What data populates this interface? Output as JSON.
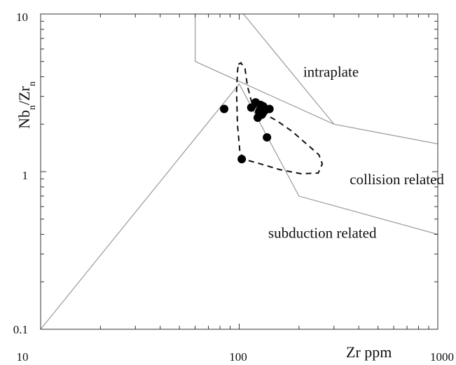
{
  "chart_data": {
    "type": "scatter",
    "xscale": "log",
    "yscale": "log",
    "xlim": [
      10,
      1000
    ],
    "ylim": [
      0.1,
      10
    ],
    "xlabel": "Zr ppm",
    "ylabel": {
      "base1": "Nb",
      "sub1": "n",
      "slash": "/",
      "base2": "Zr",
      "sub2": "n"
    },
    "xticks": [
      {
        "value": 10,
        "label": "10"
      },
      {
        "value": 100,
        "label": "100"
      },
      {
        "value": 1000,
        "label": "1000"
      }
    ],
    "yticks": [
      {
        "value": 0.1,
        "label": "0.1"
      },
      {
        "value": 1,
        "label": "1"
      },
      {
        "value": 10,
        "label": "10"
      }
    ],
    "fields": [
      {
        "label": "intraplate",
        "x": 210,
        "y": 4.0
      },
      {
        "label": "collision related",
        "x": 360,
        "y": 0.83
      },
      {
        "label": "subduction related",
        "x": 140,
        "y": 0.38
      }
    ],
    "boundaries": [
      {
        "name": "subduction-collision",
        "points": [
          [
            10,
            0.1
          ],
          [
            100,
            3.6
          ],
          [
            200,
            0.7
          ],
          [
            1000,
            0.4
          ]
        ]
      },
      {
        "name": "collision-intraplate",
        "points": [
          [
            60,
            10
          ],
          [
            60,
            5.0
          ],
          [
            300,
            2.0
          ],
          [
            1000,
            1.5
          ]
        ]
      },
      {
        "name": "intraplate-upper",
        "points": [
          [
            105,
            10
          ],
          [
            300,
            2.0
          ]
        ]
      }
    ],
    "envelope": [
      [
        99,
        4.8
      ],
      [
        102,
        4.9
      ],
      [
        107,
        4.5
      ],
      [
        110,
        3.5
      ],
      [
        116,
        2.7
      ],
      [
        128,
        2.4
      ],
      [
        155,
        2.1
      ],
      [
        185,
        1.8
      ],
      [
        225,
        1.45
      ],
      [
        252,
        1.28
      ],
      [
        262,
        1.12
      ],
      [
        250,
        0.98
      ],
      [
        205,
        0.97
      ],
      [
        160,
        1.03
      ],
      [
        128,
        1.12
      ],
      [
        110,
        1.18
      ],
      [
        101,
        1.3
      ],
      [
        98,
        2.0
      ],
      [
        97,
        3.2
      ],
      [
        98,
        4.3
      ],
      [
        99,
        4.8
      ]
    ],
    "points": [
      {
        "x": 84,
        "y": 2.5
      },
      {
        "x": 103,
        "y": 1.2
      },
      {
        "x": 115,
        "y": 2.55
      },
      {
        "x": 121,
        "y": 2.75
      },
      {
        "x": 124,
        "y": 2.2
      },
      {
        "x": 126,
        "y": 2.4
      },
      {
        "x": 128,
        "y": 2.65
      },
      {
        "x": 130,
        "y": 2.3
      },
      {
        "x": 132,
        "y": 2.6
      },
      {
        "x": 135,
        "y": 2.45
      },
      {
        "x": 138,
        "y": 1.65
      },
      {
        "x": 142,
        "y": 2.5
      }
    ]
  }
}
